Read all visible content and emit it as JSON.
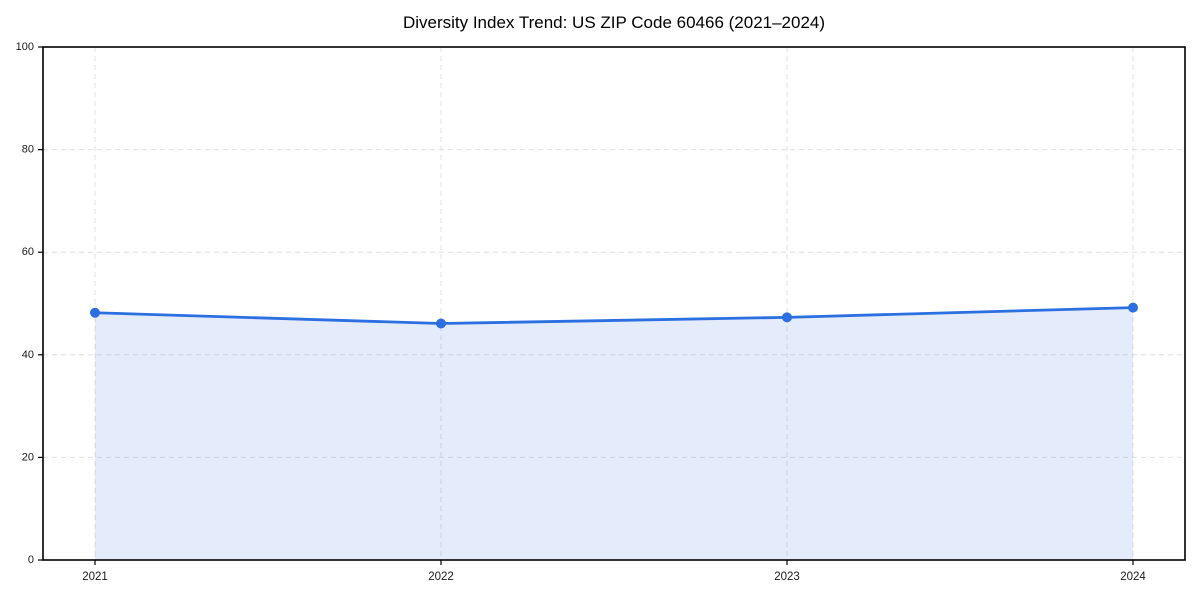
{
  "figure": {
    "background": "#ffffff"
  },
  "chart_data": {
    "type": "line",
    "title": "Diversity Index Trend: US ZIP Code 60466 (2021–2024)",
    "categories": [
      "2021",
      "2022",
      "2023",
      "2024"
    ],
    "series": [
      {
        "name": "Diversity Index",
        "values": [
          48.2,
          46.1,
          47.3,
          49.2
        ]
      }
    ],
    "xlabel": "",
    "ylabel": "",
    "ylim": [
      0,
      100
    ],
    "yticks": [
      0,
      20,
      40,
      60,
      80,
      100
    ],
    "grid": true,
    "grid_style": "dashed",
    "legend": "none",
    "area_fill": true,
    "marker": "circle",
    "colors": {
      "line": "#2b6fe0",
      "marker": "#2b6fe0",
      "fill": "rgba(43, 111, 224, 0.13)",
      "grid": "#e0e0e0",
      "axis": "#000000",
      "tick_label": "#1a1a1a",
      "title": "#000000"
    }
  }
}
